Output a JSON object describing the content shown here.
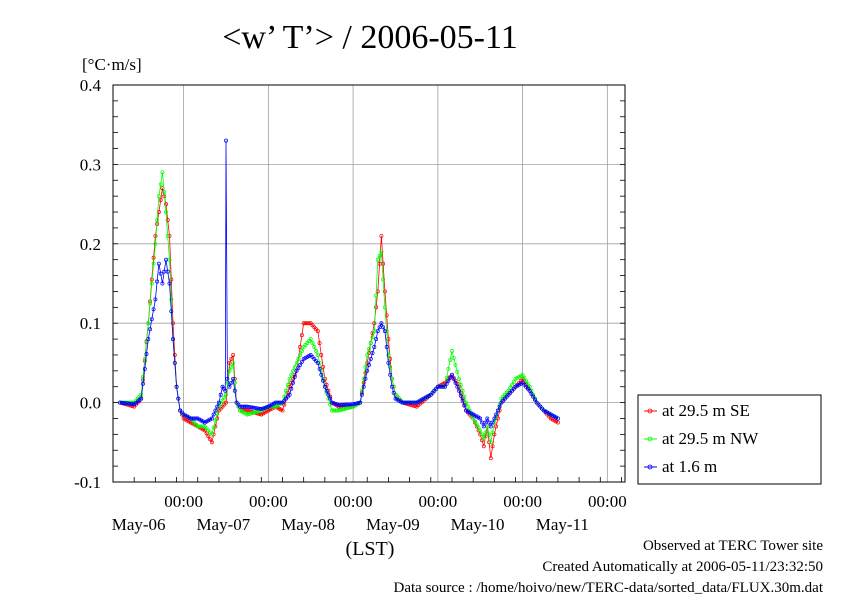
{
  "chart_data": {
    "type": "line",
    "title": "<w’ T’> / 2006-05-11",
    "ylabel": "[°C·m/s]",
    "xlabel": "(LST)",
    "ylim": [
      -0.1,
      0.4
    ],
    "yticks": [
      "0.4",
      "0.3",
      "0.2",
      "0.1",
      "0.0",
      "-0.1"
    ],
    "yticks_values": [
      0.4,
      0.3,
      0.2,
      0.1,
      0.0,
      -0.1
    ],
    "xlim_hours": [
      0,
      145
    ],
    "days": [
      {
        "tick": "00:00",
        "date": "May-06"
      },
      {
        "tick": "00:00",
        "date": "May-07"
      },
      {
        "tick": "00:00",
        "date": "May-08"
      },
      {
        "tick": "00:00",
        "date": "May-09"
      },
      {
        "tick": "00:00",
        "date": "May-10"
      },
      {
        "tick": "00:00",
        "date": "May-11"
      }
    ],
    "grid": true,
    "legend_position": "right",
    "series": [
      {
        "name": "at 29.5 m SE",
        "color": "#ff0000",
        "points": [
          [
            0,
            0
          ],
          [
            4,
            -0.005
          ],
          [
            6,
            0.005
          ],
          [
            8,
            0.1
          ],
          [
            10,
            0.21
          ],
          [
            11,
            0.24
          ],
          [
            12,
            0.27
          ],
          [
            13,
            0.25
          ],
          [
            14,
            0.21
          ],
          [
            15,
            0.1
          ],
          [
            16,
            0.02
          ],
          [
            17,
            -0.01
          ],
          [
            18,
            -0.02
          ],
          [
            20,
            -0.025
          ],
          [
            22,
            -0.03
          ],
          [
            24,
            -0.035
          ],
          [
            26,
            -0.05
          ],
          [
            28,
            -0.01
          ],
          [
            30,
            0
          ],
          [
            31,
            0.05
          ],
          [
            32,
            0.06
          ],
          [
            33,
            0
          ],
          [
            34,
            -0.01
          ],
          [
            36,
            -0.01
          ],
          [
            40,
            -0.015
          ],
          [
            42,
            -0.01
          ],
          [
            44,
            -0.005
          ],
          [
            46,
            -0.01
          ],
          [
            48,
            0.02
          ],
          [
            50,
            0.04
          ],
          [
            52,
            0.1
          ],
          [
            54,
            0.1
          ],
          [
            56,
            0.09
          ],
          [
            58,
            0.03
          ],
          [
            60,
            0
          ],
          [
            62,
            -0.005
          ],
          [
            66,
            -0.005
          ],
          [
            68,
            0
          ],
          [
            70,
            0.05
          ],
          [
            72,
            0.1
          ],
          [
            73,
            0.14
          ],
          [
            74,
            0.21
          ],
          [
            75,
            0.14
          ],
          [
            76,
            0.08
          ],
          [
            77,
            0.03
          ],
          [
            78,
            0.01
          ],
          [
            80,
            0
          ],
          [
            84,
            -0.005
          ],
          [
            88,
            0.01
          ],
          [
            90,
            0.02
          ],
          [
            92,
            0.025
          ],
          [
            94,
            0.035
          ],
          [
            96,
            0.02
          ],
          [
            98,
            -0.01
          ],
          [
            100,
            -0.02
          ],
          [
            102,
            -0.04
          ],
          [
            103,
            -0.055
          ],
          [
            104,
            -0.03
          ],
          [
            105,
            -0.07
          ],
          [
            106,
            -0.04
          ],
          [
            108,
            0
          ],
          [
            110,
            0.01
          ],
          [
            112,
            0.02
          ],
          [
            114,
            0.03
          ],
          [
            116,
            0.015
          ],
          [
            118,
            0
          ],
          [
            120,
            -0.01
          ],
          [
            122,
            -0.02
          ],
          [
            124,
            -0.025
          ]
        ]
      },
      {
        "name": "at 29.5 m NW",
        "color": "#00ff00",
        "points": [
          [
            0,
            0
          ],
          [
            4,
            0
          ],
          [
            6,
            0.01
          ],
          [
            8,
            0.1
          ],
          [
            10,
            0.2
          ],
          [
            11,
            0.26
          ],
          [
            12,
            0.29
          ],
          [
            13,
            0.24
          ],
          [
            14,
            0.18
          ],
          [
            15,
            0.08
          ],
          [
            16,
            0.02
          ],
          [
            17,
            -0.01
          ],
          [
            18,
            -0.015
          ],
          [
            20,
            -0.02
          ],
          [
            22,
            -0.03
          ],
          [
            24,
            -0.03
          ],
          [
            26,
            -0.04
          ],
          [
            28,
            -0.005
          ],
          [
            30,
            0.01
          ],
          [
            31,
            0.04
          ],
          [
            32,
            0.05
          ],
          [
            33,
            0
          ],
          [
            34,
            -0.01
          ],
          [
            36,
            -0.015
          ],
          [
            40,
            -0.01
          ],
          [
            42,
            -0.005
          ],
          [
            44,
            -0.005
          ],
          [
            46,
            0
          ],
          [
            48,
            0.03
          ],
          [
            50,
            0.05
          ],
          [
            52,
            0.07
          ],
          [
            54,
            0.08
          ],
          [
            56,
            0.06
          ],
          [
            58,
            0.02
          ],
          [
            60,
            -0.01
          ],
          [
            62,
            -0.01
          ],
          [
            66,
            -0.005
          ],
          [
            68,
            0
          ],
          [
            70,
            0.06
          ],
          [
            72,
            0.09
          ],
          [
            73,
            0.18
          ],
          [
            74,
            0.19
          ],
          [
            75,
            0.12
          ],
          [
            76,
            0.06
          ],
          [
            77,
            0.03
          ],
          [
            78,
            0.01
          ],
          [
            80,
            0
          ],
          [
            84,
            0
          ],
          [
            88,
            0.01
          ],
          [
            90,
            0.02
          ],
          [
            92,
            0.02
          ],
          [
            94,
            0.065
          ],
          [
            96,
            0.03
          ],
          [
            98,
            0
          ],
          [
            100,
            -0.02
          ],
          [
            102,
            -0.035
          ],
          [
            103,
            -0.045
          ],
          [
            104,
            -0.03
          ],
          [
            105,
            -0.05
          ],
          [
            106,
            -0.025
          ],
          [
            108,
            0.005
          ],
          [
            110,
            0.015
          ],
          [
            112,
            0.03
          ],
          [
            114,
            0.035
          ],
          [
            116,
            0.02
          ],
          [
            118,
            0
          ],
          [
            120,
            -0.01
          ],
          [
            122,
            -0.015
          ],
          [
            124,
            -0.02
          ]
        ]
      },
      {
        "name": "at 1.6 m",
        "color": "#0000ff",
        "points": [
          [
            0,
            0
          ],
          [
            4,
            -0.002
          ],
          [
            6,
            0.005
          ],
          [
            8,
            0.08
          ],
          [
            10,
            0.13
          ],
          [
            11,
            0.175
          ],
          [
            12,
            0.15
          ],
          [
            13,
            0.18
          ],
          [
            14,
            0.15
          ],
          [
            15,
            0.08
          ],
          [
            16,
            0.02
          ],
          [
            17,
            -0.01
          ],
          [
            18,
            -0.015
          ],
          [
            20,
            -0.02
          ],
          [
            22,
            -0.02
          ],
          [
            24,
            -0.025
          ],
          [
            26,
            -0.02
          ],
          [
            28,
            0
          ],
          [
            29,
            0.02
          ],
          [
            29.8,
            0.015
          ],
          [
            30,
            0.33
          ],
          [
            30.4,
            0.03
          ],
          [
            31,
            0.02
          ],
          [
            32,
            0.03
          ],
          [
            33,
            0
          ],
          [
            34,
            -0.005
          ],
          [
            36,
            -0.005
          ],
          [
            40,
            -0.008
          ],
          [
            42,
            -0.005
          ],
          [
            44,
            0
          ],
          [
            46,
            0
          ],
          [
            48,
            0.01
          ],
          [
            50,
            0.04
          ],
          [
            52,
            0.055
          ],
          [
            54,
            0.06
          ],
          [
            56,
            0.05
          ],
          [
            58,
            0.02
          ],
          [
            60,
            0
          ],
          [
            62,
            -0.003
          ],
          [
            66,
            -0.002
          ],
          [
            68,
            0
          ],
          [
            70,
            0.04
          ],
          [
            72,
            0.07
          ],
          [
            73,
            0.09
          ],
          [
            74,
            0.1
          ],
          [
            75,
            0.09
          ],
          [
            76,
            0.05
          ],
          [
            77,
            0.02
          ],
          [
            78,
            0.005
          ],
          [
            80,
            0
          ],
          [
            84,
            0
          ],
          [
            88,
            0.01
          ],
          [
            90,
            0.02
          ],
          [
            92,
            0.02
          ],
          [
            94,
            0.035
          ],
          [
            96,
            0.015
          ],
          [
            98,
            -0.01
          ],
          [
            100,
            -0.015
          ],
          [
            102,
            -0.02
          ],
          [
            103,
            -0.03
          ],
          [
            104,
            -0.02
          ],
          [
            105,
            -0.03
          ],
          [
            106,
            -0.02
          ],
          [
            108,
            0
          ],
          [
            110,
            0.01
          ],
          [
            112,
            0.02
          ],
          [
            114,
            0.025
          ],
          [
            116,
            0.015
          ],
          [
            118,
            0
          ],
          [
            120,
            -0.01
          ],
          [
            122,
            -0.015
          ],
          [
            124,
            -0.02
          ]
        ]
      }
    ]
  },
  "footer": {
    "line1": "Observed at TERC Tower site",
    "line2": "Created Automatically at 2006-05-11/23:32:50",
    "line3": "Data source : /home/hoivo/new/TERC-data/sorted_data/FLUX.30m.dat"
  }
}
